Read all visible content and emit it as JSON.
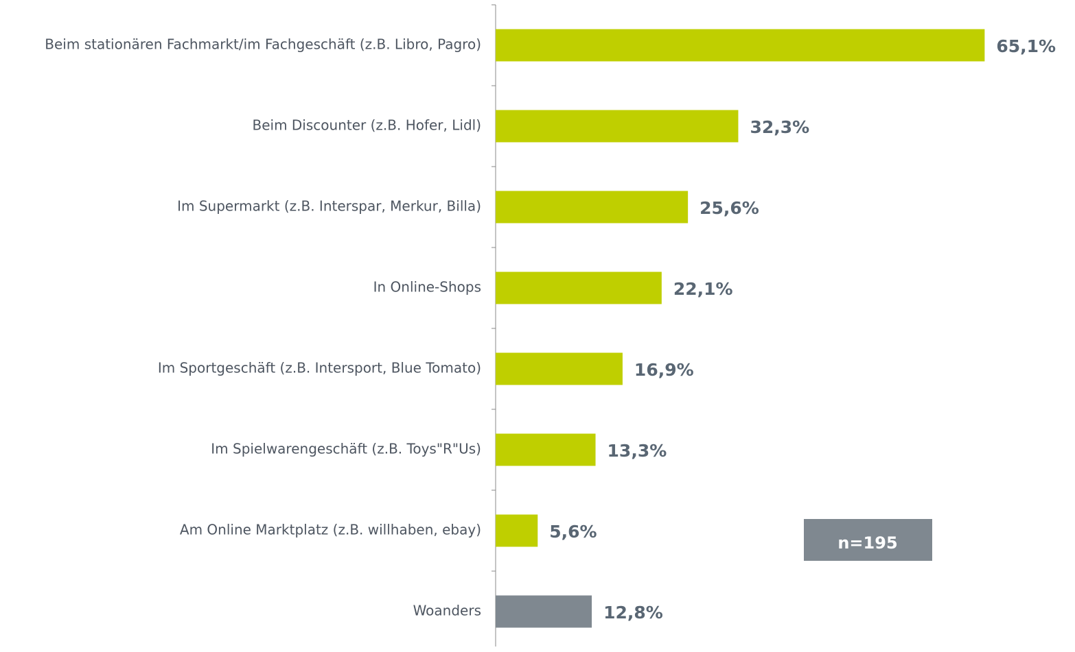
{
  "chart_data": {
    "type": "bar",
    "orientation": "horizontal",
    "categories": [
      "Beim stationären Fachmarkt/im Fachgeschäft (z.B. Libro, Pagro)",
      "Beim Discounter (z.B. Hofer, Lidl)",
      "Im Supermarkt (z.B. Interspar, Merkur, Billa)",
      "In Online-Shops",
      "Im Sportgeschäft (z.B. Intersport, Blue Tomato)",
      "Im Spielwarengeschäft (z.B. Toys\"R\"Us)",
      "Am Online Marktplatz (z.B. willhaben, ebay)",
      "Woanders"
    ],
    "values": [
      65.1,
      32.3,
      25.6,
      22.1,
      16.9,
      13.3,
      5.6,
      12.8
    ],
    "value_labels": [
      "65,1%",
      "32,3%",
      "25,6%",
      "22,1%",
      "16,9%",
      "13,3%",
      "5,6%",
      "12,8%"
    ],
    "colors": [
      "#bfcf00",
      "#bfcf00",
      "#bfcf00",
      "#bfcf00",
      "#bfcf00",
      "#bfcf00",
      "#bfcf00",
      "#7f8890"
    ],
    "xlim": [
      0,
      70
    ],
    "annotation": "n=195"
  }
}
